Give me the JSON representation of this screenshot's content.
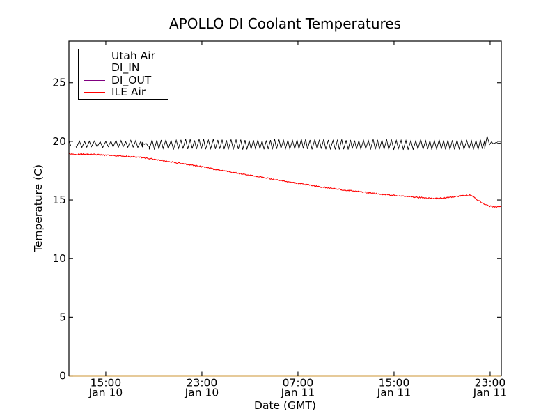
{
  "window": {
    "background": "#ffffff"
  },
  "chart_data": {
    "type": "line",
    "title": "APOLLO DI Coolant Temperatures",
    "xlabel": "Date (GMT)",
    "ylabel": "Temperature (C)",
    "grid": false,
    "x_axis": {
      "unit": "hours since Jan 10 00:00 GMT",
      "range": [
        11.93,
        47.93
      ],
      "ticks": [
        {
          "t": 15,
          "line1": "15:00",
          "line2": "Jan 10"
        },
        {
          "t": 23,
          "line1": "23:00",
          "line2": "Jan 10"
        },
        {
          "t": 31,
          "line1": "07:00",
          "line2": "Jan 11"
        },
        {
          "t": 39,
          "line1": "15:00",
          "line2": "Jan 11"
        },
        {
          "t": 47,
          "line1": "23:00",
          "line2": "Jan 11"
        }
      ]
    },
    "y_axis": {
      "range": [
        0,
        28.55
      ],
      "ticks": [
        0,
        5,
        10,
        15,
        20,
        25
      ]
    },
    "legend": {
      "position": "upper-left",
      "entries": [
        {
          "name": "Utah Air",
          "color": "#000000"
        },
        {
          "name": "DI_IN",
          "color": "#ffa500"
        },
        {
          "name": "DI_OUT",
          "color": "#800080"
        },
        {
          "name": "ILE Air",
          "color": "#ff0000"
        }
      ]
    },
    "series": [
      {
        "name": "Utah Air",
        "color": "#000000",
        "description": "room air temperature, sawtooth oscillation ~25 min period around 19.3-20.2 C",
        "segments": [
          {
            "kind": "points",
            "pts": [
              [
                11.93,
                20.08
              ],
              [
                12.08,
                19.62
              ],
              [
                12.55,
                19.6
              ]
            ]
          },
          {
            "kind": "sawtooth",
            "t0": 12.55,
            "t1": 18.05,
            "lo": 19.5,
            "hi": 20.02,
            "period": 0.42
          },
          {
            "kind": "points",
            "pts": [
              [
                18.05,
                19.9
              ],
              [
                18.2,
                19.74
              ],
              [
                18.35,
                19.84
              ],
              [
                18.5,
                19.62
              ],
              [
                18.62,
                19.56
              ]
            ]
          },
          {
            "kind": "sawtooth",
            "t0": 18.62,
            "t1": 46.55,
            "lo": 19.35,
            "hi": 20.12,
            "period": 0.385
          },
          {
            "kind": "points",
            "pts": [
              [
                46.55,
                19.4
              ],
              [
                46.75,
                20.45
              ],
              [
                46.95,
                19.72
              ],
              [
                47.1,
                19.95
              ],
              [
                47.3,
                19.78
              ],
              [
                47.5,
                19.92
              ],
              [
                47.7,
                19.82
              ],
              [
                47.93,
                19.88
              ]
            ]
          }
        ]
      },
      {
        "name": "DI_IN",
        "color": "#ffa500",
        "constant": 0.0
      },
      {
        "name": "DI_OUT",
        "color": "#800080",
        "constant": 0.0
      },
      {
        "name": "ILE Air",
        "color": "#ff0000",
        "noise": 0.05,
        "points": [
          [
            11.93,
            19.0
          ],
          [
            12.2,
            18.9
          ],
          [
            12.6,
            18.87
          ],
          [
            13.0,
            18.9
          ],
          [
            13.5,
            18.92
          ],
          [
            14.0,
            18.88
          ],
          [
            15.0,
            18.82
          ],
          [
            16.0,
            18.78
          ],
          [
            17.0,
            18.7
          ],
          [
            18.0,
            18.62
          ],
          [
            19.0,
            18.48
          ],
          [
            20.0,
            18.32
          ],
          [
            21.0,
            18.16
          ],
          [
            22.0,
            18.0
          ],
          [
            23.0,
            17.84
          ],
          [
            24.0,
            17.64
          ],
          [
            25.0,
            17.45
          ],
          [
            26.0,
            17.28
          ],
          [
            27.0,
            17.12
          ],
          [
            28.0,
            16.95
          ],
          [
            29.0,
            16.76
          ],
          [
            30.0,
            16.58
          ],
          [
            31.0,
            16.42
          ],
          [
            32.0,
            16.26
          ],
          [
            33.0,
            16.1
          ],
          [
            34.0,
            15.96
          ],
          [
            35.0,
            15.83
          ],
          [
            36.0,
            15.72
          ],
          [
            37.0,
            15.6
          ],
          [
            38.0,
            15.48
          ],
          [
            39.0,
            15.4
          ],
          [
            40.0,
            15.3
          ],
          [
            41.0,
            15.22
          ],
          [
            42.0,
            15.16
          ],
          [
            42.5,
            15.14
          ],
          [
            43.0,
            15.16
          ],
          [
            43.5,
            15.2
          ],
          [
            44.0,
            15.27
          ],
          [
            44.5,
            15.34
          ],
          [
            45.0,
            15.39
          ],
          [
            45.3,
            15.41
          ],
          [
            45.6,
            15.3
          ],
          [
            45.9,
            15.05
          ],
          [
            46.2,
            14.85
          ],
          [
            46.5,
            14.66
          ],
          [
            46.8,
            14.54
          ],
          [
            47.1,
            14.45
          ],
          [
            47.4,
            14.4
          ],
          [
            47.7,
            14.42
          ],
          [
            47.93,
            14.46
          ]
        ]
      }
    ]
  }
}
